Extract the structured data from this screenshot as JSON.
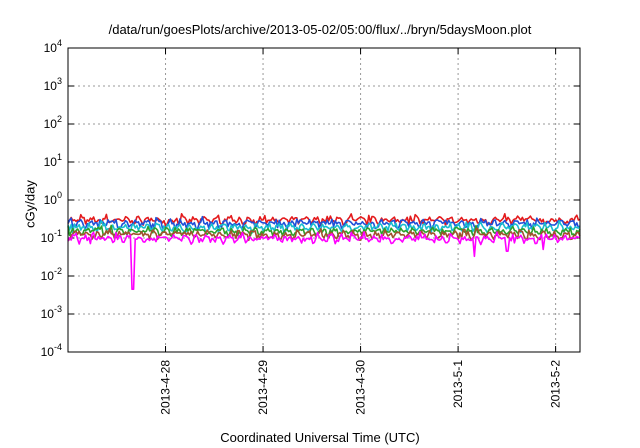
{
  "chart_data": {
    "type": "line",
    "title": "/data/run/goesPlots/archive/2013-05-02/05:00/flux/../bryn/5daysMoon.plot",
    "xlabel": "Coordinated Universal Time (UTC)",
    "ylabel": "cGy/day",
    "yscale": "log",
    "ylim": [
      0.0001,
      10000
    ],
    "y_ticks": [
      {
        "base": "10",
        "exp": "-4"
      },
      {
        "base": "10",
        "exp": "-3"
      },
      {
        "base": "10",
        "exp": "-2"
      },
      {
        "base": "10",
        "exp": "-1"
      },
      {
        "base": "10",
        "exp": "0"
      },
      {
        "base": "10",
        "exp": "1"
      },
      {
        "base": "10",
        "exp": "2"
      },
      {
        "base": "10",
        "exp": "3"
      },
      {
        "base": "10",
        "exp": "4"
      }
    ],
    "xlim": [
      "2013-04-27T00:00",
      "2013-05-02T06:00"
    ],
    "x_ticks": [
      "2013-4-28",
      "2013-4-29",
      "2013-4-30",
      "2013-5-1",
      "2013-5-2"
    ],
    "grid": true,
    "series": [
      {
        "color": "#e41a1c",
        "level": 0.29,
        "dips": []
      },
      {
        "color": "#1f4fd8",
        "level": 0.24,
        "dips": []
      },
      {
        "color": "#17becf",
        "level": 0.19,
        "dips": []
      },
      {
        "color": "#2ca02c",
        "level": 0.15,
        "dips": []
      },
      {
        "color": "#a0522d",
        "level": 0.12,
        "dips": []
      },
      {
        "color": "#ff00ff",
        "level": 0.095,
        "dips": [
          {
            "time": "2013-04-27T16:00",
            "value": 0.0045
          },
          {
            "time": "2013-05-01T04:00",
            "value": 0.033
          },
          {
            "time": "2013-05-01T12:00",
            "value": 0.045
          },
          {
            "time": "2013-05-01T21:00",
            "value": 0.05
          }
        ]
      }
    ]
  }
}
